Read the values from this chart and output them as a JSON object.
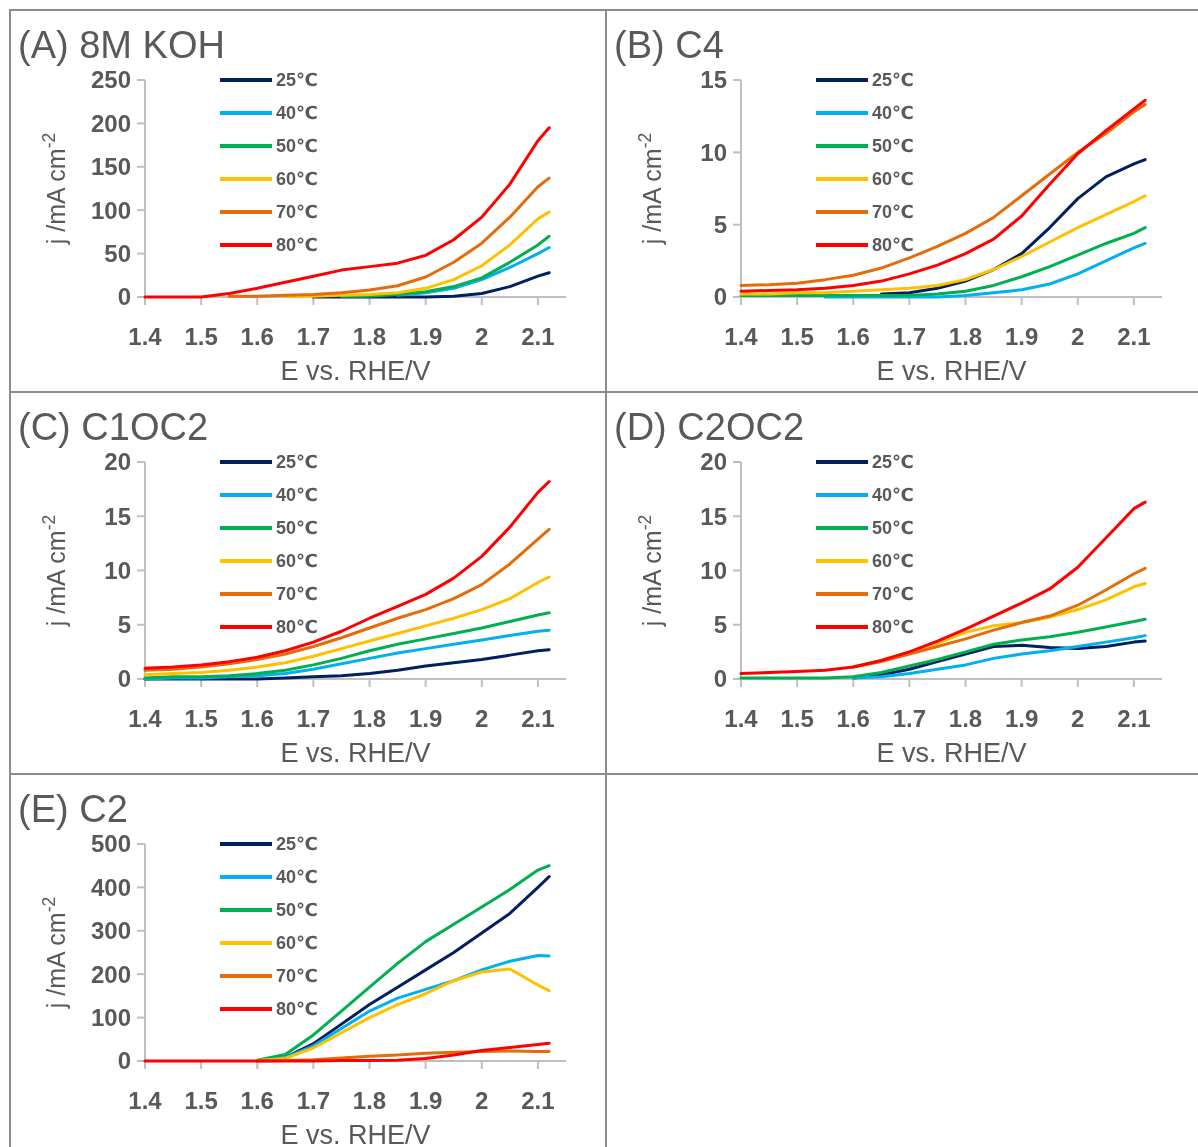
{
  "chart_data": [
    {
      "type": "line",
      "title": "(A) 8M KOH",
      "xlabel": "E vs. RHE/V",
      "ylabel": "j /mA cm$^{-2}$",
      "x": [
        1.4,
        1.45,
        1.5,
        1.55,
        1.6,
        1.65,
        1.7,
        1.75,
        1.8,
        1.85,
        1.9,
        1.95,
        2.0,
        2.05,
        2.1,
        2.12
      ],
      "xlim": [
        1.4,
        2.15
      ],
      "xticks": [
        1.4,
        1.5,
        1.6,
        1.7,
        1.8,
        1.9,
        2,
        2.1
      ],
      "ylim": [
        0,
        250
      ],
      "yticks": [
        0,
        50,
        100,
        150,
        200,
        250
      ],
      "legend": "top left",
      "grid": false,
      "series": [
        {
          "name": "25℃",
          "color": "#002060",
          "values": [
            null,
            null,
            null,
            null,
            null,
            null,
            0,
            0,
            0,
            0,
            0,
            1,
            4,
            12,
            24,
            28
          ]
        },
        {
          "name": "40℃",
          "color": "#00b0f0",
          "values": [
            null,
            null,
            null,
            null,
            null,
            null,
            null,
            null,
            null,
            2,
            5,
            10,
            20,
            34,
            50,
            57
          ]
        },
        {
          "name": "50℃",
          "color": "#00b050",
          "values": [
            null,
            null,
            null,
            null,
            null,
            null,
            null,
            1,
            1,
            3,
            6,
            12,
            22,
            40,
            60,
            70
          ]
        },
        {
          "name": "60℃",
          "color": "#ffc000",
          "values": [
            null,
            null,
            null,
            null,
            null,
            1,
            1,
            2,
            3,
            5,
            10,
            20,
            36,
            60,
            90,
            98
          ]
        },
        {
          "name": "70℃",
          "color": "#e46c0a",
          "values": [
            null,
            null,
            null,
            1,
            1,
            2,
            3,
            5,
            8,
            13,
            23,
            40,
            62,
            92,
            127,
            137
          ]
        },
        {
          "name": "80℃",
          "color": "#ff0000",
          "values": [
            0,
            0,
            0,
            4,
            10,
            17,
            24,
            31,
            35,
            39,
            48,
            66,
            92,
            130,
            180,
            195
          ]
        }
      ]
    },
    {
      "type": "line",
      "title": "(B) C4",
      "xlabel": "E vs. RHE/V",
      "ylabel": "j /mA cm$^{-2}$",
      "x": [
        1.4,
        1.45,
        1.5,
        1.55,
        1.6,
        1.65,
        1.7,
        1.75,
        1.8,
        1.85,
        1.9,
        1.95,
        2.0,
        2.05,
        2.1,
        2.12
      ],
      "xlim": [
        1.4,
        2.15
      ],
      "xticks": [
        1.4,
        1.5,
        1.6,
        1.7,
        1.8,
        1.9,
        2,
        2.1
      ],
      "ylim": [
        0,
        15
      ],
      "yticks": [
        0,
        5,
        10,
        15
      ],
      "legend": "top left",
      "grid": false,
      "series": [
        {
          "name": "25℃",
          "color": "#002060",
          "values": [
            null,
            null,
            null,
            null,
            null,
            0.2,
            0.3,
            0.6,
            1.1,
            1.9,
            3.0,
            4.8,
            6.8,
            8.3,
            9.2,
            9.5
          ]
        },
        {
          "name": "40℃",
          "color": "#00b0f0",
          "values": [
            null,
            null,
            null,
            0,
            0,
            0,
            0,
            0,
            0.1,
            0.3,
            0.5,
            0.9,
            1.6,
            2.5,
            3.4,
            3.7
          ]
        },
        {
          "name": "50℃",
          "color": "#00b050",
          "values": [
            0.1,
            0.1,
            0.1,
            0.1,
            0.1,
            0.1,
            0.1,
            0.2,
            0.4,
            0.8,
            1.4,
            2.1,
            2.9,
            3.7,
            4.4,
            4.8
          ]
        },
        {
          "name": "60℃",
          "color": "#ffc000",
          "values": [
            0.2,
            0.2,
            0.3,
            0.3,
            0.4,
            0.5,
            0.6,
            0.8,
            1.2,
            1.9,
            2.8,
            3.8,
            4.8,
            5.7,
            6.6,
            7.0
          ]
        },
        {
          "name": "70℃",
          "color": "#e46c0a",
          "values": [
            0.8,
            0.85,
            0.95,
            1.2,
            1.5,
            2.0,
            2.7,
            3.5,
            4.4,
            5.5,
            7.0,
            8.5,
            10.0,
            11.3,
            12.8,
            13.3
          ]
        },
        {
          "name": "80℃",
          "color": "#ff0000",
          "values": [
            0.4,
            0.45,
            0.5,
            0.6,
            0.8,
            1.1,
            1.6,
            2.2,
            3.0,
            4.0,
            5.6,
            7.8,
            9.9,
            11.5,
            13.0,
            13.6
          ]
        }
      ]
    },
    {
      "type": "line",
      "title": "(C) C1OC2",
      "xlabel": "E vs. RHE/V",
      "ylabel": "j /mA cm$^{-2}$",
      "x": [
        1.4,
        1.45,
        1.5,
        1.55,
        1.6,
        1.65,
        1.7,
        1.75,
        1.8,
        1.85,
        1.9,
        1.95,
        2.0,
        2.05,
        2.1,
        2.12
      ],
      "xlim": [
        1.4,
        2.15
      ],
      "xticks": [
        1.4,
        1.5,
        1.6,
        1.7,
        1.8,
        1.9,
        2,
        2.1
      ],
      "ylim": [
        0,
        20
      ],
      "yticks": [
        0,
        5,
        10,
        15,
        20
      ],
      "legend": "top left",
      "grid": false,
      "series": [
        {
          "name": "25℃",
          "color": "#002060",
          "values": [
            0,
            0,
            0,
            0,
            0,
            0.1,
            0.2,
            0.3,
            0.5,
            0.8,
            1.2,
            1.5,
            1.8,
            2.2,
            2.6,
            2.7
          ]
        },
        {
          "name": "40℃",
          "color": "#00b0f0",
          "values": [
            0,
            0.1,
            0.1,
            0.2,
            0.3,
            0.5,
            0.9,
            1.4,
            1.9,
            2.4,
            2.8,
            3.2,
            3.6,
            4.0,
            4.4,
            4.5
          ]
        },
        {
          "name": "50℃",
          "color": "#00b050",
          "values": [
            0.1,
            0.2,
            0.2,
            0.3,
            0.5,
            0.8,
            1.3,
            1.9,
            2.6,
            3.2,
            3.7,
            4.2,
            4.7,
            5.3,
            5.9,
            6.1
          ]
        },
        {
          "name": "60℃",
          "color": "#ffc000",
          "values": [
            0.4,
            0.5,
            0.6,
            0.8,
            1.1,
            1.5,
            2.1,
            2.8,
            3.5,
            4.2,
            4.9,
            5.6,
            6.4,
            7.4,
            8.9,
            9.4
          ]
        },
        {
          "name": "70℃",
          "color": "#e46c0a",
          "values": [
            0.8,
            0.9,
            1.1,
            1.4,
            1.8,
            2.3,
            3.0,
            3.8,
            4.7,
            5.6,
            6.4,
            7.4,
            8.7,
            10.6,
            12.9,
            13.8
          ]
        },
        {
          "name": "80℃",
          "color": "#ff0000",
          "values": [
            1.0,
            1.1,
            1.3,
            1.6,
            2.0,
            2.6,
            3.4,
            4.4,
            5.6,
            6.7,
            7.8,
            9.3,
            11.3,
            14.0,
            17.2,
            18.2
          ]
        }
      ]
    },
    {
      "type": "line",
      "title": "(D) C2OC2",
      "xlabel": "E vs. RHE/V",
      "ylabel": "j /mA cm$^{-2}$",
      "x": [
        1.4,
        1.45,
        1.5,
        1.55,
        1.6,
        1.65,
        1.7,
        1.75,
        1.8,
        1.85,
        1.9,
        1.95,
        2.0,
        2.05,
        2.1,
        2.12
      ],
      "xlim": [
        1.4,
        2.15
      ],
      "xticks": [
        1.4,
        1.5,
        1.6,
        1.7,
        1.8,
        1.9,
        2,
        2.1
      ],
      "ylim": [
        0,
        20
      ],
      "yticks": [
        0,
        5,
        10,
        15,
        20
      ],
      "legend": "top left",
      "grid": false,
      "series": [
        {
          "name": "25℃",
          "color": "#002060",
          "values": [
            null,
            null,
            null,
            null,
            0.1,
            0.4,
            0.9,
            1.6,
            2.3,
            3.0,
            3.1,
            2.9,
            2.8,
            3.0,
            3.4,
            3.5
          ]
        },
        {
          "name": "40℃",
          "color": "#00b0f0",
          "values": [
            null,
            null,
            null,
            null,
            0.1,
            0.2,
            0.5,
            0.9,
            1.3,
            1.9,
            2.3,
            2.6,
            3.0,
            3.4,
            3.8,
            4.0
          ]
        },
        {
          "name": "50℃",
          "color": "#00b050",
          "values": [
            0.1,
            0.1,
            0.1,
            0.1,
            0.2,
            0.6,
            1.2,
            1.8,
            2.5,
            3.2,
            3.6,
            3.9,
            4.3,
            4.8,
            5.3,
            5.5
          ]
        },
        {
          "name": "60℃",
          "color": "#ffc000",
          "values": [
            null,
            null,
            null,
            null,
            1.1,
            1.7,
            2.5,
            3.3,
            4.3,
            4.9,
            5.2,
            5.7,
            6.4,
            7.3,
            8.5,
            8.8
          ]
        },
        {
          "name": "70℃",
          "color": "#e46c0a",
          "values": [
            null,
            null,
            null,
            null,
            1.1,
            1.6,
            2.3,
            3.0,
            3.7,
            4.5,
            5.2,
            5.8,
            6.8,
            8.2,
            9.7,
            10.2
          ]
        },
        {
          "name": "80℃",
          "color": "#ff0000",
          "values": [
            0.5,
            0.6,
            0.7,
            0.8,
            1.1,
            1.7,
            2.5,
            3.5,
            4.6,
            5.8,
            7.0,
            8.3,
            10.3,
            13.0,
            15.7,
            16.3
          ]
        }
      ]
    },
    {
      "type": "line",
      "title": "(E) C2",
      "xlabel": "E vs. RHE/V",
      "ylabel": "j /mA cm$^{-2}$",
      "x": [
        1.4,
        1.45,
        1.5,
        1.55,
        1.6,
        1.65,
        1.7,
        1.75,
        1.8,
        1.85,
        1.9,
        1.95,
        2.0,
        2.05,
        2.1,
        2.12
      ],
      "xlim": [
        1.4,
        2.15
      ],
      "xticks": [
        1.4,
        1.5,
        1.6,
        1.7,
        1.8,
        1.9,
        2,
        2.1
      ],
      "ylim": [
        0,
        500
      ],
      "yticks": [
        0,
        100,
        200,
        300,
        400,
        500
      ],
      "legend": "top left",
      "grid": false,
      "series": [
        {
          "name": "25℃",
          "color": "#002060",
          "values": [
            null,
            null,
            null,
            null,
            null,
            8,
            40,
            85,
            130,
            170,
            210,
            250,
            295,
            340,
            400,
            425
          ]
        },
        {
          "name": "40℃",
          "color": "#00b0f0",
          "values": [
            null,
            null,
            null,
            null,
            1,
            8,
            35,
            75,
            115,
            145,
            165,
            185,
            210,
            230,
            243,
            242
          ]
        },
        {
          "name": "50℃",
          "color": "#00b050",
          "values": [
            null,
            null,
            null,
            null,
            2,
            15,
            60,
            115,
            170,
            225,
            275,
            315,
            355,
            395,
            440,
            450
          ]
        },
        {
          "name": "60℃",
          "color": "#ffc000",
          "values": [
            null,
            null,
            null,
            null,
            1,
            6,
            30,
            65,
            100,
            130,
            155,
            185,
            205,
            212,
            175,
            162
          ]
        },
        {
          "name": "70℃",
          "color": "#e46c0a",
          "values": [
            null,
            null,
            null,
            null,
            0,
            1,
            3,
            7,
            11,
            14,
            18,
            20,
            22,
            23,
            22,
            22
          ]
        },
        {
          "name": "80℃",
          "color": "#ff0000",
          "values": [
            0,
            0,
            0,
            0,
            0,
            0,
            0,
            1,
            1,
            2,
            6,
            14,
            24,
            31,
            38,
            41
          ]
        }
      ]
    }
  ]
}
